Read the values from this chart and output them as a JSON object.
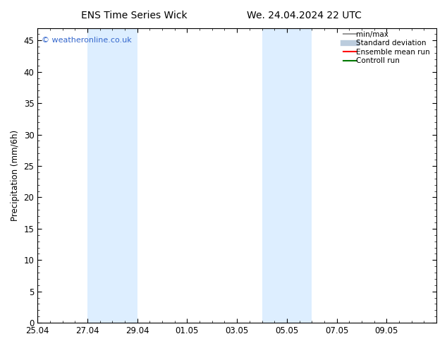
{
  "title_left": "ENS Time Series Wick",
  "title_right": "We. 24.04.2024 22 UTC",
  "ylabel": "Precipitation (mm/6h)",
  "ylim": [
    0,
    47
  ],
  "yticks": [
    0,
    5,
    10,
    15,
    20,
    25,
    30,
    35,
    40,
    45
  ],
  "xlim": [
    0,
    16
  ],
  "xtick_labels": [
    "25.04",
    "27.04",
    "29.04",
    "01.05",
    "03.05",
    "05.05",
    "07.05",
    "09.05"
  ],
  "xtick_positions": [
    0,
    2,
    4,
    6,
    8,
    10,
    12,
    14
  ],
  "shaded_bands": [
    {
      "x_start": 2.0,
      "x_end": 4.0
    },
    {
      "x_start": 9.0,
      "x_end": 11.0
    }
  ],
  "shaded_color": "#ddeeff",
  "watermark_text": "© weatheronline.co.uk",
  "watermark_color": "#3366cc",
  "legend_items": [
    {
      "label": "min/max",
      "color": "#999999",
      "lw": 1.5,
      "style": "solid"
    },
    {
      "label": "Standard deviation",
      "color": "#bbccdd",
      "lw": 6,
      "style": "solid"
    },
    {
      "label": "Ensemble mean run",
      "color": "#ff0000",
      "lw": 1.5,
      "style": "solid"
    },
    {
      "label": "Controll run",
      "color": "#007700",
      "lw": 1.5,
      "style": "solid"
    }
  ],
  "bg_color": "#ffffff",
  "plot_bg_color": "#ffffff",
  "tick_color": "#000000",
  "font_size": 8.5,
  "title_font_size": 10
}
